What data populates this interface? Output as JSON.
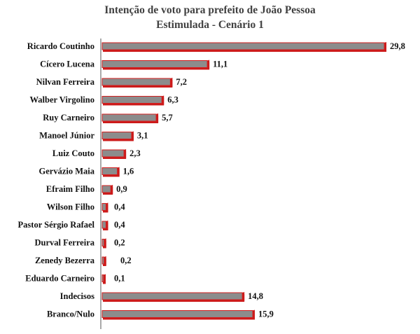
{
  "chart_data": {
    "type": "bar",
    "orientation": "horizontal",
    "title": "Intenção de voto para prefeito de João Pessoa",
    "subtitle": "Estimulada - Cenário 1",
    "categories": [
      "Ricardo Coutinho",
      "Cícero Lucena",
      "Nilvan Ferreira",
      "Walber Virgolino",
      "Ruy Carneiro",
      "Manoel Júnior",
      "Luiz Couto",
      "Gervázio Maia",
      "Efraim Filho",
      "Wilson Filho",
      "Pastor Sérgio Rafael",
      "Durval Ferreira",
      "Zenedy Bezerra",
      "Eduardo Carneiro",
      "Indecisos",
      "Branco/Nulo"
    ],
    "values": [
      29.8,
      11.1,
      7.2,
      6.3,
      5.7,
      3.1,
      2.3,
      1.6,
      0.9,
      0.4,
      0.4,
      0.2,
      0.2,
      0.1,
      14.8,
      15.9
    ],
    "value_labels": [
      "29,8",
      "11,1",
      "7,2",
      "6,3",
      "5,7",
      "3,1",
      "2,3",
      "1,6",
      "0,9",
      "0,4",
      "0,4",
      "0,2",
      "0,2",
      "0,1",
      "14,8",
      "15,9"
    ],
    "xlim": [
      0,
      30
    ],
    "xlabel": "",
    "ylabel": "",
    "grid": false,
    "legend": "none",
    "colors": {
      "bar_face": "#8c8c8c",
      "bar_shadow": "#cc1a1a",
      "bar_outline": "#d42020",
      "axis": "#555555"
    }
  }
}
